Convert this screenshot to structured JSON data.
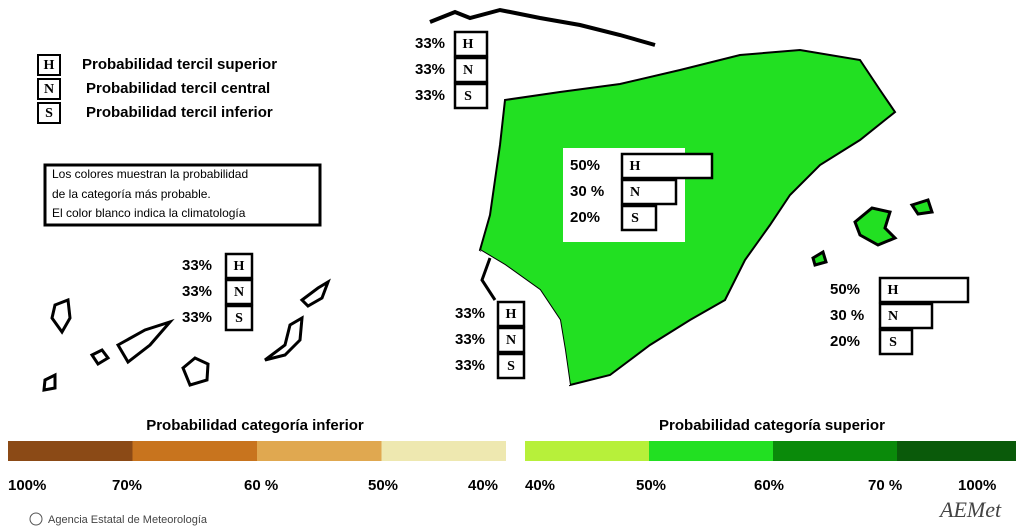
{
  "legend": {
    "items": [
      {
        "letter": "H",
        "label": "Probabilidad  tercil superior"
      },
      {
        "letter": "N",
        "label": "Probabilidad  tercil central"
      },
      {
        "letter": "S",
        "label": "Probabilidad  tercil inferior"
      }
    ]
  },
  "note": [
    "Los colores muestran la probabilidad",
    "de la categoría más probable.",
    "El color blanco indica la climatología"
  ],
  "regions": [
    {
      "rows": [
        {
          "pct": "33%",
          "letter": "H"
        },
        {
          "pct": "33%",
          "letter": "N"
        },
        {
          "pct": "33%",
          "letter": "S"
        }
      ]
    },
    {
      "rows": [
        {
          "pct": "33%",
          "letter": "H"
        },
        {
          "pct": "33%",
          "letter": "N"
        },
        {
          "pct": "33%",
          "letter": "S"
        }
      ]
    },
    {
      "rows": [
        {
          "pct": "50%",
          "letter": "H"
        },
        {
          "pct": "30 %",
          "letter": "N"
        },
        {
          "pct": "20%",
          "letter": "S"
        }
      ]
    },
    {
      "rows": [
        {
          "pct": "33%",
          "letter": "H"
        },
        {
          "pct": "33%",
          "letter": "N"
        },
        {
          "pct": "33%",
          "letter": "S"
        }
      ]
    },
    {
      "rows": [
        {
          "pct": "50%",
          "letter": "H"
        },
        {
          "pct": "30 %",
          "letter": "N"
        },
        {
          "pct": "20%",
          "letter": "S"
        }
      ]
    }
  ],
  "scales": [
    {
      "title": "Probabilidad categoría inferior",
      "labels": [
        "100%",
        "70%",
        "60 %",
        "50%",
        "40%"
      ]
    },
    {
      "title": "Probabilidad categoría superior",
      "labels": [
        "40%",
        "50%",
        "60%",
        "70 %",
        "100%"
      ]
    }
  ],
  "footer": "Agencia Estatal de Meteorología",
  "logo": "AEMet"
}
